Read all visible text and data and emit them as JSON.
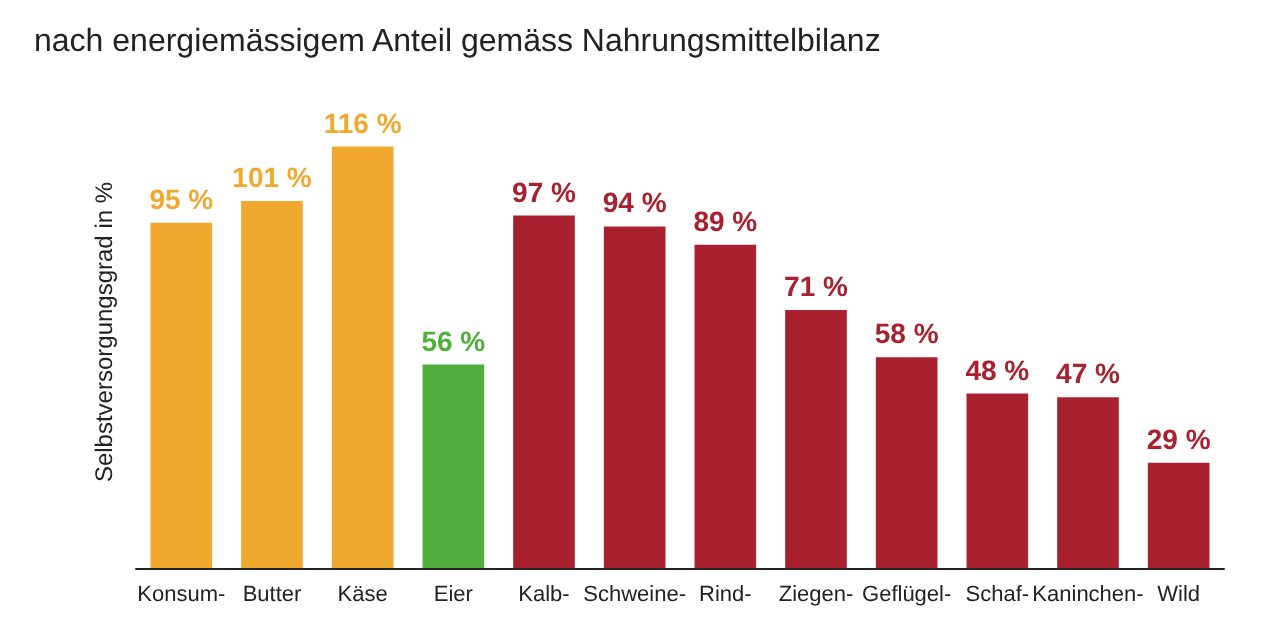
{
  "chart_data": {
    "type": "bar",
    "title": "nach energiemässigem Anteil gemäss Nahrungsmittelbilanz",
    "ylabel": "Selbstversorgungsgrad in %",
    "categories": [
      "Konsum-",
      "Butter",
      "Käse",
      "Eier",
      "Kalb-",
      "Schweine-",
      "Rind-",
      "Ziegen-",
      "Geflügel-",
      "Schaf-",
      "Kaninchen-",
      "Wild"
    ],
    "values": [
      95,
      101,
      116,
      56,
      97,
      94,
      89,
      71,
      58,
      48,
      47,
      29
    ],
    "colors": [
      "#f0a92e",
      "#f0a92e",
      "#f0a92e",
      "#4fae3c",
      "#a9212f",
      "#a9212f",
      "#a9212f",
      "#a9212f",
      "#a9212f",
      "#a9212f",
      "#a9212f",
      "#a9212f"
    ],
    "value_labels": [
      "95 %",
      "101 %",
      "116 %",
      "56 %",
      "97 %",
      "94 %",
      "89 %",
      "71 %",
      "58 %",
      "48 %",
      "47 %",
      "29 %"
    ]
  }
}
